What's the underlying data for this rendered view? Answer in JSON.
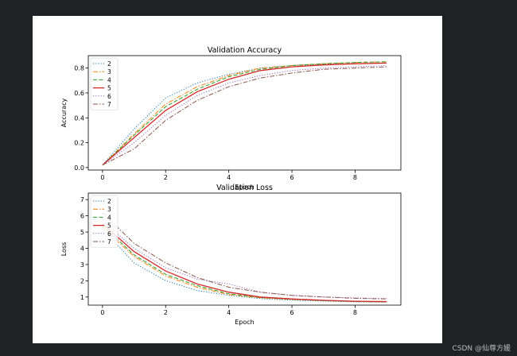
{
  "watermark": "CSDN @仙尊方媛",
  "chart_data": [
    {
      "type": "line",
      "title": "Validation Accuracy",
      "xlabel": "Epoch",
      "ylabel": "Accuracy",
      "xlim": [
        -0.45,
        9.45
      ],
      "ylim": [
        -0.02,
        0.9
      ],
      "xticks": [
        0,
        2,
        4,
        6,
        8
      ],
      "yticks": [
        0.0,
        0.2,
        0.4,
        0.6,
        0.8
      ],
      "ytick_labels": [
        "0.0",
        "0.2",
        "0.4",
        "0.6",
        "0.8"
      ],
      "grid": false,
      "legend_position": "top-left",
      "x": [
        0,
        1,
        2,
        3,
        4,
        5,
        6,
        7,
        8,
        9
      ],
      "series": [
        {
          "name": "2",
          "color": "#1f77b4",
          "dash": "dotted",
          "values": [
            0.02,
            0.31,
            0.56,
            0.68,
            0.75,
            0.8,
            0.82,
            0.83,
            0.835,
            0.84
          ]
        },
        {
          "name": "3",
          "color": "#ff7f0e",
          "dash": "dashdot",
          "values": [
            0.02,
            0.27,
            0.51,
            0.65,
            0.74,
            0.8,
            0.82,
            0.835,
            0.845,
            0.85
          ]
        },
        {
          "name": "4",
          "color": "#2ca02c",
          "dash": "dashed",
          "values": [
            0.02,
            0.26,
            0.49,
            0.63,
            0.73,
            0.79,
            0.82,
            0.835,
            0.845,
            0.85
          ]
        },
        {
          "name": "5",
          "color": "#d62728",
          "dash": "solid",
          "values": [
            0.02,
            0.24,
            0.46,
            0.61,
            0.71,
            0.78,
            0.81,
            0.825,
            0.835,
            0.84
          ]
        },
        {
          "name": "6",
          "color": "#9467bd",
          "dash": "dotted",
          "values": [
            0.02,
            0.2,
            0.42,
            0.58,
            0.68,
            0.74,
            0.78,
            0.8,
            0.81,
            0.82
          ]
        },
        {
          "name": "7",
          "color": "#8c564b",
          "dash": "dashdot",
          "values": [
            0.02,
            0.15,
            0.38,
            0.54,
            0.65,
            0.72,
            0.76,
            0.79,
            0.8,
            0.81
          ]
        }
      ]
    },
    {
      "type": "line",
      "title": "Validation Loss",
      "xlabel": "Epoch",
      "ylabel": "Loss",
      "xlim": [
        -0.45,
        9.45
      ],
      "ylim": [
        0.5,
        7.4
      ],
      "xticks": [
        0,
        2,
        4,
        6,
        8
      ],
      "yticks": [
        1,
        2,
        3,
        4,
        5,
        6,
        7
      ],
      "ytick_labels": [
        "1",
        "2",
        "3",
        "4",
        "5",
        "6",
        "7"
      ],
      "grid": false,
      "legend_position": "top-left",
      "x": [
        0,
        1,
        2,
        3,
        4,
        5,
        6,
        7,
        8,
        9
      ],
      "series": [
        {
          "name": "2",
          "color": "#1f77b4",
          "dash": "dotted",
          "values": [
            5.2,
            3.1,
            2.0,
            1.4,
            1.1,
            0.9,
            0.8,
            0.75,
            0.7,
            0.68
          ]
        },
        {
          "name": "3",
          "color": "#ff7f0e",
          "dash": "dashdot",
          "values": [
            5.3,
            3.5,
            2.3,
            1.6,
            1.15,
            0.95,
            0.85,
            0.78,
            0.72,
            0.7
          ]
        },
        {
          "name": "4",
          "color": "#2ca02c",
          "dash": "dashed",
          "values": [
            5.4,
            3.6,
            2.4,
            1.7,
            1.2,
            0.97,
            0.86,
            0.78,
            0.72,
            0.7
          ]
        },
        {
          "name": "5",
          "color": "#d62728",
          "dash": "solid",
          "values": [
            5.5,
            3.8,
            2.6,
            1.8,
            1.3,
            1.0,
            0.88,
            0.8,
            0.74,
            0.72
          ]
        },
        {
          "name": "6",
          "color": "#9467bd",
          "dash": "dotted",
          "values": [
            5.7,
            4.0,
            2.8,
            2.1,
            1.8,
            1.3,
            1.1,
            1.0,
            0.95,
            0.9
          ]
        },
        {
          "name": "7",
          "color": "#8c564b",
          "dash": "dashdot",
          "values": [
            6.2,
            4.3,
            3.1,
            2.2,
            1.6,
            1.3,
            1.1,
            1.0,
            0.92,
            0.88
          ]
        }
      ]
    }
  ]
}
